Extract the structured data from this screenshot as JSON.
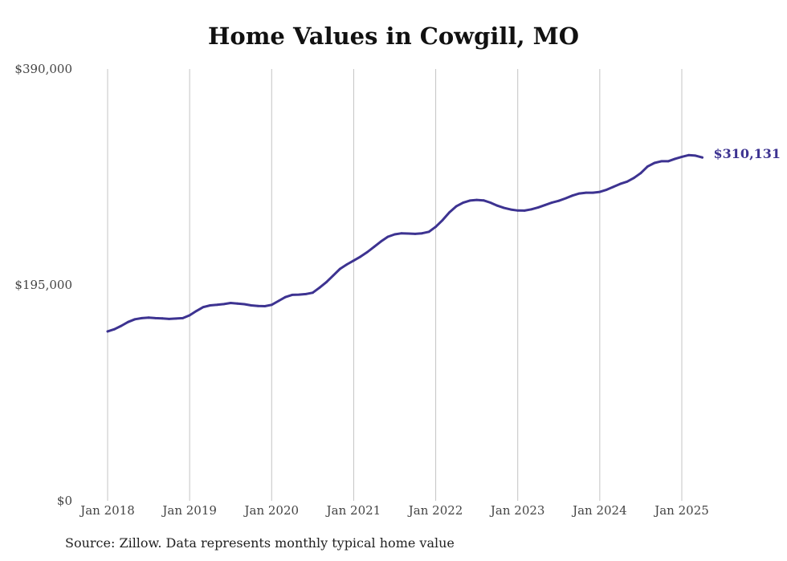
{
  "chart_data": {
    "type": "line",
    "title": "Home Values in Cowgill, MO",
    "source_note": "Source: Zillow. Data represents monthly typical home value",
    "ylim": [
      0,
      390000
    ],
    "y_ticks": [
      {
        "value": 0,
        "label": "$0"
      },
      {
        "value": 195000,
        "label": "$195,000"
      },
      {
        "value": 390000,
        "label": "$390,000"
      }
    ],
    "x_ticks": [
      {
        "value": "2018-01",
        "label": "Jan 2018"
      },
      {
        "value": "2019-01",
        "label": "Jan 2019"
      },
      {
        "value": "2020-01",
        "label": "Jan 2020"
      },
      {
        "value": "2021-01",
        "label": "Jan 2021"
      },
      {
        "value": "2022-01",
        "label": "Jan 2022"
      },
      {
        "value": "2023-01",
        "label": "Jan 2023"
      },
      {
        "value": "2024-01",
        "label": "Jan 2024"
      },
      {
        "value": "2025-01",
        "label": "Jan 2025"
      }
    ],
    "grid": "vertical",
    "color": "#3d3391",
    "end_label": "$310,131",
    "series": [
      {
        "points": [
          {
            "x": "2018-01",
            "y": 153000
          },
          {
            "x": "2018-02",
            "y": 155000
          },
          {
            "x": "2018-03",
            "y": 158000
          },
          {
            "x": "2018-04",
            "y": 161500
          },
          {
            "x": "2018-05",
            "y": 164000
          },
          {
            "x": "2018-06",
            "y": 165000
          },
          {
            "x": "2018-07",
            "y": 165500
          },
          {
            "x": "2018-08",
            "y": 165000
          },
          {
            "x": "2018-09",
            "y": 164800
          },
          {
            "x": "2018-10",
            "y": 164300
          },
          {
            "x": "2018-11",
            "y": 164600
          },
          {
            "x": "2018-12",
            "y": 165000
          },
          {
            "x": "2019-01",
            "y": 167500
          },
          {
            "x": "2019-02",
            "y": 171500
          },
          {
            "x": "2019-03",
            "y": 175000
          },
          {
            "x": "2019-04",
            "y": 176500
          },
          {
            "x": "2019-05",
            "y": 177000
          },
          {
            "x": "2019-06",
            "y": 177700
          },
          {
            "x": "2019-07",
            "y": 178700
          },
          {
            "x": "2019-08",
            "y": 178200
          },
          {
            "x": "2019-09",
            "y": 177600
          },
          {
            "x": "2019-10",
            "y": 176500
          },
          {
            "x": "2019-11",
            "y": 176000
          },
          {
            "x": "2019-12",
            "y": 175800
          },
          {
            "x": "2020-01",
            "y": 177000
          },
          {
            "x": "2020-02",
            "y": 180500
          },
          {
            "x": "2020-03",
            "y": 184000
          },
          {
            "x": "2020-04",
            "y": 186000
          },
          {
            "x": "2020-05",
            "y": 186200
          },
          {
            "x": "2020-06",
            "y": 186700
          },
          {
            "x": "2020-07",
            "y": 188000
          },
          {
            "x": "2020-08",
            "y": 192500
          },
          {
            "x": "2020-09",
            "y": 197500
          },
          {
            "x": "2020-10",
            "y": 203500
          },
          {
            "x": "2020-11",
            "y": 209500
          },
          {
            "x": "2020-12",
            "y": 213500
          },
          {
            "x": "2021-01",
            "y": 217000
          },
          {
            "x": "2021-02",
            "y": 220500
          },
          {
            "x": "2021-03",
            "y": 224700
          },
          {
            "x": "2021-04",
            "y": 229500
          },
          {
            "x": "2021-05",
            "y": 234300
          },
          {
            "x": "2021-06",
            "y": 238500
          },
          {
            "x": "2021-07",
            "y": 240700
          },
          {
            "x": "2021-08",
            "y": 241600
          },
          {
            "x": "2021-09",
            "y": 241400
          },
          {
            "x": "2021-10",
            "y": 241100
          },
          {
            "x": "2021-11",
            "y": 241600
          },
          {
            "x": "2021-12",
            "y": 243000
          },
          {
            "x": "2022-01",
            "y": 247500
          },
          {
            "x": "2022-02",
            "y": 253500
          },
          {
            "x": "2022-03",
            "y": 260500
          },
          {
            "x": "2022-04",
            "y": 266000
          },
          {
            "x": "2022-05",
            "y": 269200
          },
          {
            "x": "2022-06",
            "y": 271200
          },
          {
            "x": "2022-07",
            "y": 271800
          },
          {
            "x": "2022-08",
            "y": 271300
          },
          {
            "x": "2022-09",
            "y": 269300
          },
          {
            "x": "2022-10",
            "y": 266600
          },
          {
            "x": "2022-11",
            "y": 264500
          },
          {
            "x": "2022-12",
            "y": 263100
          },
          {
            "x": "2023-01",
            "y": 262200
          },
          {
            "x": "2023-02",
            "y": 262100
          },
          {
            "x": "2023-03",
            "y": 263300
          },
          {
            "x": "2023-04",
            "y": 265000
          },
          {
            "x": "2023-05",
            "y": 267200
          },
          {
            "x": "2023-06",
            "y": 269400
          },
          {
            "x": "2023-07",
            "y": 271000
          },
          {
            "x": "2023-08",
            "y": 273200
          },
          {
            "x": "2023-09",
            "y": 275700
          },
          {
            "x": "2023-10",
            "y": 277600
          },
          {
            "x": "2023-11",
            "y": 278300
          },
          {
            "x": "2023-12",
            "y": 278300
          },
          {
            "x": "2024-01",
            "y": 279000
          },
          {
            "x": "2024-02",
            "y": 281000
          },
          {
            "x": "2024-03",
            "y": 283600
          },
          {
            "x": "2024-04",
            "y": 286300
          },
          {
            "x": "2024-05",
            "y": 288300
          },
          {
            "x": "2024-06",
            "y": 291600
          },
          {
            "x": "2024-07",
            "y": 296000
          },
          {
            "x": "2024-08",
            "y": 302000
          },
          {
            "x": "2024-09",
            "y": 305200
          },
          {
            "x": "2024-10",
            "y": 306700
          },
          {
            "x": "2024-11",
            "y": 306700
          },
          {
            "x": "2024-12",
            "y": 308900
          },
          {
            "x": "2025-01",
            "y": 310700
          },
          {
            "x": "2025-02",
            "y": 312200
          },
          {
            "x": "2025-03",
            "y": 311800
          },
          {
            "x": "2025-04",
            "y": 310131
          }
        ]
      }
    ]
  }
}
